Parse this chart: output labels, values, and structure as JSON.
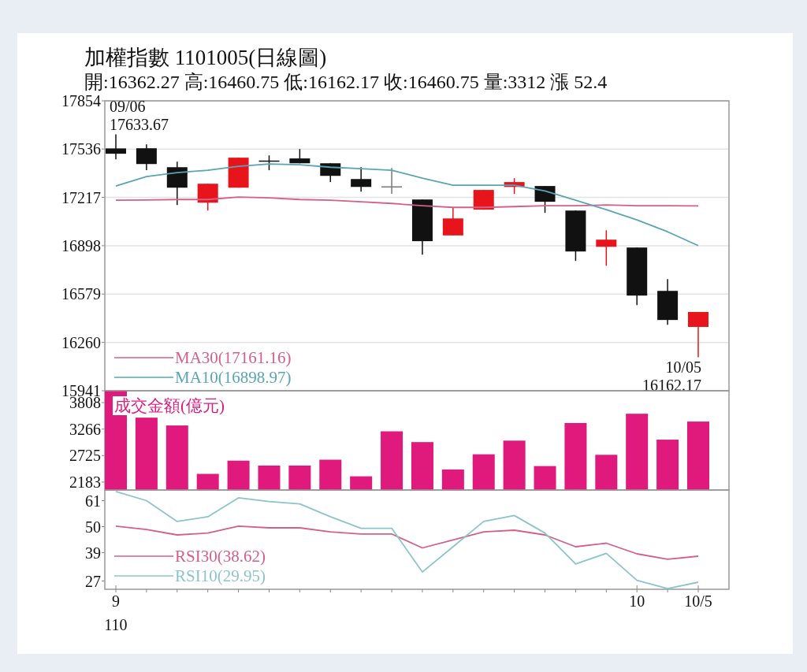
{
  "chart_data": [
    {
      "type": "candlestick",
      "title": "加權指數 1101005(日線圖)",
      "subtitle": "開:16362.27 高:16460.75 低:16162.17 收:16460.75 量:3312 漲 52.4",
      "categories": [
        null,
        null,
        null,
        null,
        null,
        null,
        null,
        null,
        null,
        null,
        null,
        null,
        null,
        null,
        null,
        null,
        null,
        null,
        null,
        null
      ],
      "ohlc": [
        [
          17540,
          17633.67,
          17468,
          17505
        ],
        [
          17541,
          17567,
          17396,
          17437
        ],
        [
          17416,
          17453,
          17167,
          17281
        ],
        [
          17182,
          17307,
          17130,
          17307
        ],
        [
          17281,
          17479,
          17281,
          17479
        ],
        [
          17460,
          17494,
          17396,
          17455
        ],
        [
          17474,
          17536,
          17442,
          17442
        ],
        [
          17442,
          17442,
          17318,
          17359
        ],
        [
          17338,
          17416,
          17255,
          17286
        ],
        [
          17290,
          17411,
          17240,
          17285
        ],
        [
          17203,
          17203,
          16839,
          16928
        ],
        [
          16966,
          17151,
          16966,
          17078
        ],
        [
          17136,
          17266,
          17136,
          17266
        ],
        [
          17286,
          17344,
          17240,
          17318
        ],
        [
          17292,
          17292,
          17115,
          17188
        ],
        [
          17130,
          17130,
          16798,
          16860
        ],
        [
          16891,
          17000,
          16766,
          16938
        ],
        [
          16886,
          16886,
          16506,
          16569
        ],
        [
          16600,
          16678,
          16377,
          16408
        ],
        [
          16362.27,
          16460.75,
          16162.17,
          16460.75
        ]
      ],
      "colors": [
        "#111111",
        "#111111",
        "#111111",
        "#e8141b",
        "#e8141b",
        "#111111",
        "#111111",
        "#111111",
        "#111111",
        "#777777",
        "#111111",
        "#e8141b",
        "#e8141b",
        "#e8141b",
        "#111111",
        "#111111",
        "#e8141b",
        "#111111",
        "#111111",
        "#e8141b"
      ],
      "series": [
        {
          "type": "line",
          "name": "MA30(17161.16)",
          "color": "#d4608a",
          "values": [
            17198,
            17200,
            17203,
            17203,
            17219,
            17214,
            17203,
            17198,
            17188,
            17177,
            17162,
            17151,
            17151,
            17156,
            17162,
            17162,
            17167,
            17162,
            17162,
            17161.16
          ]
        },
        {
          "type": "line",
          "name": "MA10(16898.97)",
          "color": "#5aa5b5",
          "values": [
            17292,
            17354,
            17380,
            17396,
            17422,
            17437,
            17432,
            17416,
            17406,
            17396,
            17344,
            17297,
            17297,
            17297,
            17260,
            17198,
            17136,
            17068,
            16990,
            16898.97
          ]
        }
      ],
      "ylim": [
        15941,
        17854
      ],
      "yticks": [
        15941,
        16260,
        16579,
        16898,
        17217,
        17536,
        17854
      ],
      "grid": "y",
      "legend": "bottom left",
      "tick_labels": "y",
      "annotations": [
        "09/06\n17633.67",
        "10/05\n16162.17"
      ]
    },
    {
      "type": "bar",
      "categories": [
        null,
        null,
        null,
        null,
        null,
        null,
        null,
        null,
        null,
        null,
        null,
        null,
        null,
        null,
        null,
        null,
        null,
        null,
        null,
        null
      ],
      "series": [
        {
          "name": "成交金額(億元)",
          "color": "#e0197d",
          "values": [
            4040,
            3500,
            3340,
            2350,
            2620,
            2520,
            2520,
            2640,
            2300,
            3220,
            3000,
            2440,
            2750,
            3030,
            2510,
            3390,
            2740,
            3580,
            3050,
            3420
          ]
        }
      ],
      "ylim": [
        2020,
        4050
      ],
      "yticks": [
        2183,
        2725,
        3266,
        3808
      ],
      "legend": "top left",
      "tick_labels": "y"
    },
    {
      "type": "line",
      "categories": [
        "9",
        null,
        null,
        null,
        null,
        null,
        null,
        null,
        null,
        null,
        null,
        null,
        null,
        null,
        null,
        null,
        null,
        "10",
        null,
        "10/5"
      ],
      "series": [
        {
          "name": "RSI30(38.62)",
          "color": "#d4608a",
          "values": [
            50.2,
            48.8,
            46.5,
            47.3,
            50.2,
            49.5,
            49.5,
            47.8,
            46.9,
            46.9,
            41,
            44.4,
            47.8,
            48.5,
            46.5,
            41.5,
            43,
            38.5,
            36.2,
            37.5
          ]
        },
        {
          "name": "RSI10(29.95)",
          "color": "#8cc4cc",
          "values": [
            64.9,
            61,
            52.2,
            54.2,
            62.2,
            60.6,
            59.6,
            54.2,
            49.3,
            49.3,
            30.8,
            41.5,
            52.2,
            54.7,
            47.3,
            34.2,
            38.7,
            27.3,
            23.8,
            26.5
          ]
        }
      ],
      "ylim": [
        23.5,
        65.5
      ],
      "yticks": [
        27,
        39,
        50,
        61
      ],
      "legend": "bottom left",
      "annotations": [
        "110"
      ]
    }
  ]
}
